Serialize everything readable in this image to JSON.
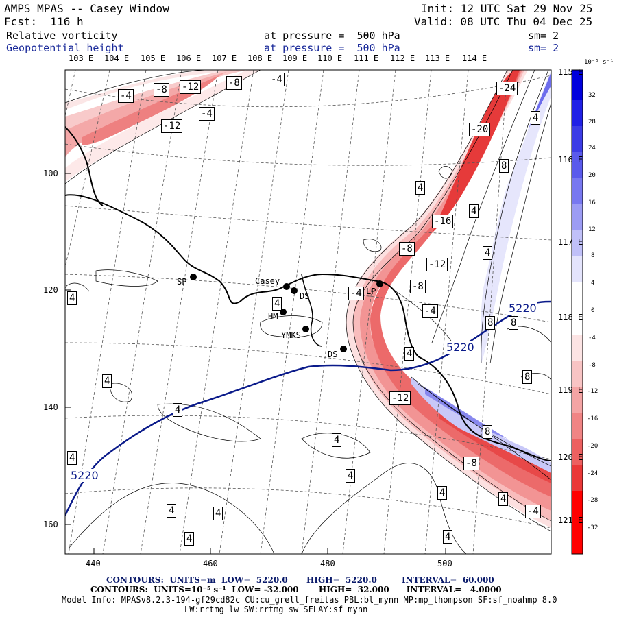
{
  "header": {
    "title": "AMPS MPAS -- Casey Window",
    "forecast": "Fcst:  116 h",
    "init": "Init: 12 UTC Sat 29 Nov 25",
    "valid": "Valid: 08 UTC Thu 04 Dec 25",
    "field1": "Relative vorticity",
    "field1_level": "at pressure =  500 hPa",
    "field1_sm": "sm= 2",
    "field2": "Geopotential height",
    "field2_level": "at pressure =  500 hPa",
    "field2_sm": "sm= 2"
  },
  "longitude_labels_top": [
    "103 E",
    "104 E",
    "105 E",
    "106 E",
    "107 E",
    "108 E",
    "109 E",
    "110 E",
    "111 E",
    "112 E",
    "113 E",
    "114 E"
  ],
  "longitude_labels_right": [
    "115 E",
    "116 E",
    "117 E",
    "118 E",
    "119 E",
    "120 E",
    "121 E"
  ],
  "x_axis_ticks": [
    "440",
    "460",
    "480",
    "500"
  ],
  "y_axis_ticks": [
    "100",
    "120",
    "140",
    "160"
  ],
  "stations": [
    {
      "name": "SP"
    },
    {
      "name": "Casey"
    },
    {
      "name": "DS"
    },
    {
      "name": "HM"
    },
    {
      "name": "YMKS"
    },
    {
      "name": "DS"
    },
    {
      "name": "LP"
    }
  ],
  "contour_labels": [
    "-4",
    "-8",
    "-12",
    "-8",
    "-4",
    "-4",
    "-12",
    "-24",
    "-20",
    "-16",
    "-12",
    "-8",
    "-8",
    "-4",
    "-4",
    "-12",
    "-8",
    "-4",
    "4",
    "4",
    "4",
    "4",
    "4",
    "4",
    "4",
    "4",
    "4",
    "4",
    "4",
    "4",
    "4",
    "4",
    "4",
    "4",
    "4",
    "4",
    "8",
    "8",
    "8",
    "8",
    "8",
    "5220",
    "5220",
    "5220"
  ],
  "colorbar": {
    "unit": "10⁻⁵ s⁻¹",
    "labels": [
      "32",
      "28",
      "24",
      "20",
      "16",
      "12",
      "8",
      "4",
      "0",
      "-4",
      "-8",
      "-12",
      "-16",
      "-20",
      "-24",
      "-28",
      "-32"
    ],
    "colors": [
      "#0000dd",
      "#2020e6",
      "#3c3ce6",
      "#5a5aec",
      "#7878f0",
      "#9c9cf4",
      "#c0c0f8",
      "#e4e4fc",
      "#ffffff",
      "#ffffff",
      "#fce4e4",
      "#f8c4c4",
      "#f4a4a4",
      "#f08484",
      "#ec6060",
      "#ea3838",
      "#ff0000"
    ]
  },
  "footer": {
    "line1_contours": "CONTOURS:  UNITS=m  LOW=  5220.0",
    "line1_high": "HIGH=  5220.0",
    "line1_interval": "INTERVAL=  60.000",
    "line2": "CONTOURS:  UNITS=10⁻⁵ s⁻¹  LOW= -32.000       HIGH=  32.000      INTERVAL=   4.0000",
    "line3": "Model Info: MPASv8.2.3-194-gf29cd82c CU:cu_grell_freitas PBL:bl_mynn MP:mp_thompson SF:sf_noahmp 8.0",
    "line4": "LW:rrtmg_lw SW:rrtmg_sw SFLAY:sf_mynn"
  }
}
